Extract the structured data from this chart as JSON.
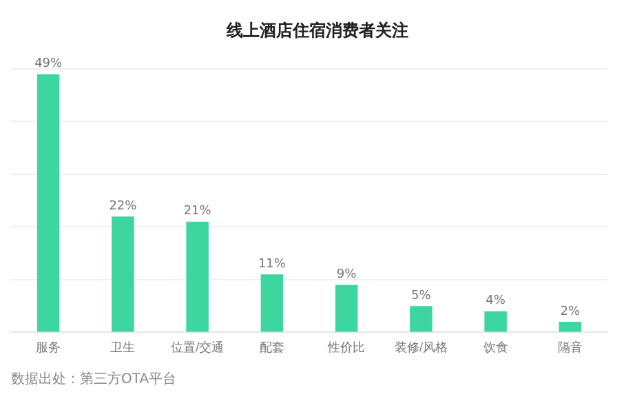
{
  "chart_data": {
    "type": "bar",
    "title": "线上酒店住宿消费者关注",
    "categories": [
      "服务",
      "卫生",
      "位置/交通",
      "配套",
      "性价比",
      "装修/风格",
      "饮食",
      "隔音"
    ],
    "values": [
      49,
      22,
      21,
      11,
      9,
      5,
      4,
      2
    ],
    "color": "#3ed6a0",
    "value_labels": [
      "49%",
      "22%",
      "21%",
      "11%",
      "9%",
      "5%",
      "4%",
      "2%"
    ],
    "ylim": [
      0,
      50
    ],
    "yticks": [
      {
        "value": 0,
        "label": null
      },
      {
        "value": 10,
        "label": null
      },
      {
        "value": 20,
        "label": null
      },
      {
        "value": 30,
        "label": null
      },
      {
        "value": 40,
        "label": null
      },
      {
        "value": 50,
        "label": null
      }
    ],
    "grid": "y",
    "tick_labels": "x",
    "annotations": [
      "数据出处：第三方OTA平台"
    ]
  }
}
